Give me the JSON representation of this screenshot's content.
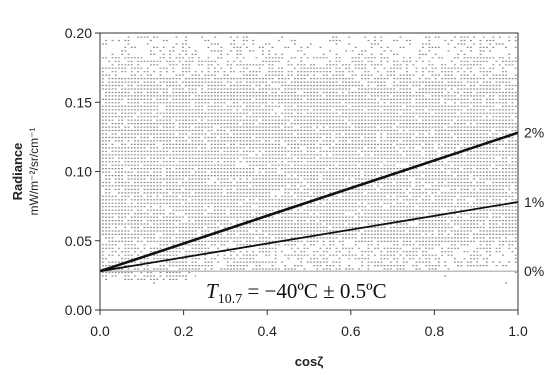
{
  "chart_data": {
    "type": "scatter",
    "xlabel": "cosζ",
    "ylabel": "Radiance",
    "ylabel_unit": "mW/m⁻²/sr/cm⁻¹",
    "xlim": [
      0.0,
      1.0
    ],
    "ylim": [
      0.0,
      0.2
    ],
    "x_ticks": [
      "0.0",
      "0.2",
      "0.4",
      "0.6",
      "0.8",
      "1.0"
    ],
    "y_ticks": [
      "0.00",
      "0.05",
      "0.10",
      "0.15",
      "0.20"
    ],
    "grid": false,
    "annotation": {
      "symbol": "T",
      "subscript": "10.7",
      "text": " = −40ºC ± 0.5ºC"
    },
    "series": [
      {
        "label": "0%",
        "style": "thin-gray",
        "x": [
          0.0,
          1.0
        ],
        "y": [
          0.028,
          0.028
        ]
      },
      {
        "label": "1%",
        "style": "medium-black",
        "x": [
          0.0,
          1.0
        ],
        "y": [
          0.028,
          0.078
        ]
      },
      {
        "label": "2%",
        "style": "thick-black",
        "x": [
          0.0,
          1.0
        ],
        "y": [
          0.028,
          0.128
        ]
      }
    ],
    "scatter_cloud": {
      "description_values": "dense horizontal bands of points spanning x 0.0–1.0",
      "y_min_at_x0": 0.02,
      "y_max": 0.198,
      "band_step": 0.0025,
      "color": "#8c8c8c"
    }
  },
  "colors": {
    "points": "#8c8c8c",
    "line_dark": "#111111",
    "line_zero": "#aaaaaa",
    "axis": "#333333"
  }
}
